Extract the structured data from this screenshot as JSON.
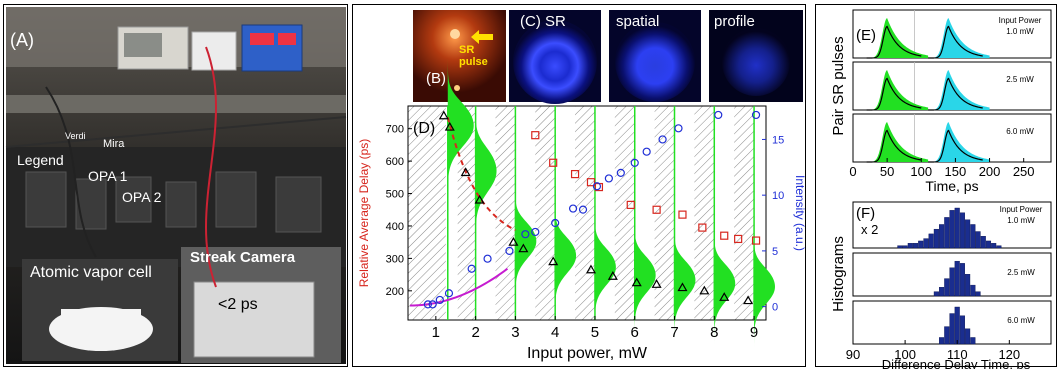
{
  "panel_a": {
    "label": "(A)",
    "texts": {
      "verdi": "Verdi",
      "mira": "Mira",
      "legend": "Legend",
      "opa1": "OPA 1",
      "opa2": "OPA 2",
      "vapor_cell": "Atomic vapor cell",
      "streak_camera": "Streak Camera",
      "streak_res": "<2 ps"
    }
  },
  "panel_b": {
    "label": "(B)",
    "arrow_text_1": "SR",
    "arrow_text_2": "pulse"
  },
  "panel_c": {
    "label": "(C) SR",
    "label2": "spatial",
    "label3": "profile"
  },
  "panel_d": {
    "label": "(D)",
    "colors": {
      "delay": "#d7261e",
      "intensity": "#1f2fd6",
      "profile_fill": "#22e022",
      "fit_dashed": "#d7261e",
      "fit_solid": "#c61bd0",
      "triangles": "#000000"
    },
    "chart_data": {
      "type": "scatter",
      "xlabel": "Input power, mW",
      "ylabel": "Relative Average Delay (ps)",
      "y2label": "Intensity (a.u.)",
      "xlim": [
        0.3,
        9.3
      ],
      "ylim": [
        110,
        770
      ],
      "y2lim": [
        -1.2,
        18
      ],
      "x_ticks": [
        "1",
        "2",
        "3",
        "4",
        "5",
        "6",
        "7",
        "8",
        "9"
      ],
      "y_ticks": [
        "200",
        "300",
        "400",
        "500",
        "600",
        "700"
      ],
      "y2_ticks": [
        "0",
        "5",
        "10",
        "15"
      ],
      "series": [
        {
          "marker": "triangle",
          "x": [
            1.2,
            1.35,
            1.75,
            2.1,
            2.95,
            3.2,
            3.95,
            4.9,
            5.45,
            6.05,
            6.55,
            7.2,
            7.75,
            8.25,
            8.85
          ],
          "y": [
            740,
            705,
            565,
            480,
            350,
            330,
            290,
            265,
            245,
            225,
            220,
            210,
            200,
            180,
            170
          ]
        },
        {
          "marker": "square",
          "axis": "left",
          "x": [
            3.5,
            3.95,
            4.5,
            4.9,
            5.1,
            5.9,
            6.55,
            7.2,
            7.7,
            8.25,
            8.6,
            9.05
          ],
          "y": [
            680,
            595,
            560,
            535,
            520,
            465,
            450,
            435,
            395,
            370,
            360,
            355
          ]
        },
        {
          "marker": "circle",
          "axis": "right",
          "x": [
            0.8,
            0.92,
            1.1,
            1.33,
            1.9,
            2.3,
            2.85,
            3.25,
            3.5,
            4.0,
            4.45,
            4.7,
            5.05,
            5.35,
            5.65,
            6.0,
            6.3,
            6.7,
            7.1,
            8.1,
            9.05
          ],
          "y": [
            0.2,
            0.2,
            0.6,
            1.2,
            3.4,
            4.3,
            5.0,
            6.5,
            6.7,
            7.5,
            8.8,
            8.7,
            10.8,
            11.5,
            12.0,
            12.9,
            13.9,
            15.0,
            16.0,
            17.2,
            17.2
          ]
        }
      ],
      "profiles_x_center": [
        1.3,
        2.0,
        3.0,
        4.0,
        5.0,
        6.0,
        7.0,
        8.0,
        9.0
      ],
      "profiles_peak_delay": [
        700,
        560,
        345,
        300,
        265,
        240,
        225,
        215,
        205
      ]
    }
  },
  "panel_e": {
    "label": "(E)",
    "ylabel": "Pair SR pulses",
    "xlabel": "Time, ps",
    "x_ticks": [
      "0",
      "50",
      "100",
      "150",
      "200",
      "250"
    ],
    "legend_title_1": "Input Power",
    "annotations": [
      "1.0 mW",
      "2.5 mW",
      "6.0 mW"
    ],
    "colors": {
      "pulse1": "#22e022",
      "pulse2": "#2ad6e8",
      "mean": "#000000"
    }
  },
  "panel_f": {
    "label": "(F)",
    "x2": "x 2",
    "ylabel": "Histograms",
    "xlabel": "Difference Delay Time, ps",
    "x_ticks": [
      "90",
      "100",
      "110",
      "120"
    ],
    "legend_title_1": "Input Power",
    "annotations": [
      "1.0 mW",
      "2.5 mW",
      "6.0 mW"
    ],
    "colors": {
      "bars": "#1a2d8f"
    },
    "chart_data": [
      {
        "type": "bar",
        "name": "1.0 mW",
        "x": [
          99,
          100,
          101,
          102,
          103,
          104,
          105,
          106,
          107,
          108,
          109,
          110,
          111,
          112,
          113,
          114,
          115,
          116,
          117,
          118
        ],
        "values": [
          1,
          1,
          2,
          2,
          3,
          4,
          6,
          8,
          10,
          13,
          16,
          17,
          15,
          12,
          10,
          7,
          5,
          3,
          2,
          1
        ]
      },
      {
        "type": "bar",
        "name": "2.5 mW",
        "x": [
          106,
          107,
          108,
          109,
          110,
          111,
          112,
          113,
          114
        ],
        "values": [
          2,
          4,
          8,
          13,
          16,
          15,
          10,
          5,
          2
        ]
      },
      {
        "type": "bar",
        "name": "6.0 mW",
        "x": [
          107,
          108,
          109,
          110,
          111,
          112,
          113
        ],
        "values": [
          3,
          8,
          14,
          17,
          13,
          7,
          3
        ]
      }
    ]
  }
}
